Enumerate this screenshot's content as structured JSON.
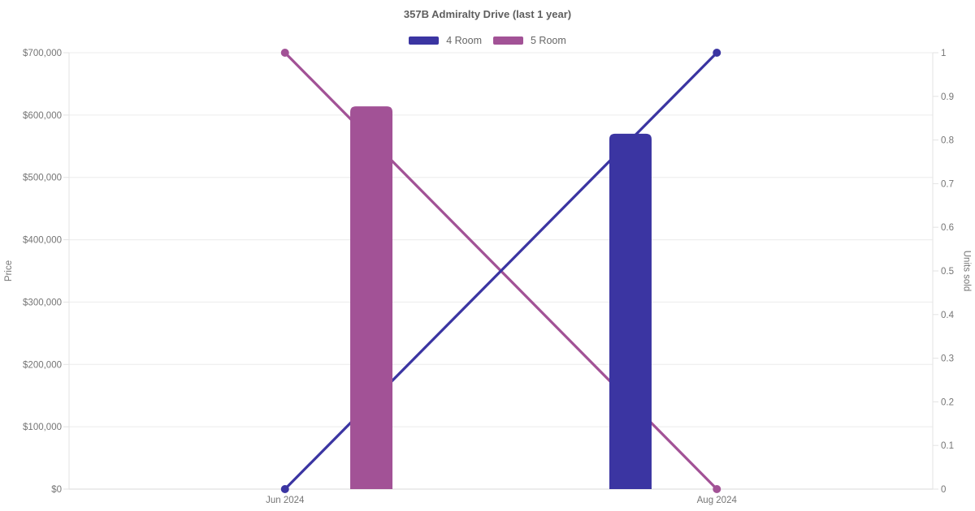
{
  "chart_data": {
    "type": "combo-bar-line",
    "title": "357B Admiralty Drive (last 1 year)",
    "categories": [
      "Jun 2024",
      "Aug 2024"
    ],
    "series": [
      {
        "name": "4 Room",
        "color": "#3b35a2",
        "bar_price": [
          null,
          570000
        ],
        "line_units_sold": [
          0,
          1
        ]
      },
      {
        "name": "5 Room",
        "color": "#a25296",
        "bar_price": [
          614000,
          null
        ],
        "line_units_sold": [
          1,
          0
        ]
      }
    ],
    "left_axis": {
      "label": "Price",
      "min": 0,
      "max": 700000,
      "tick_step": 100000,
      "tick_labels": [
        "$0",
        "$100,000",
        "$200,000",
        "$300,000",
        "$400,000",
        "$500,000",
        "$600,000",
        "$700,000"
      ]
    },
    "right_axis": {
      "label": "Units sold",
      "min": 0,
      "max": 1,
      "tick_step": 0.1,
      "tick_labels": [
        "0",
        "0.1",
        "0.2",
        "0.3",
        "0.4",
        "0.5",
        "0.6",
        "0.7",
        "0.8",
        "0.9",
        "1"
      ]
    },
    "grid": "horizontal",
    "legend_position": "top-center"
  },
  "theme": {
    "background": "#ffffff",
    "grid_color": "#ececec",
    "baseline_color": "#d9d9d9",
    "axis_line_color": "#e3e3e3",
    "tick_label_color": "#757575",
    "title_color": "#5e5e5e",
    "legend_label_color": "#666666"
  }
}
